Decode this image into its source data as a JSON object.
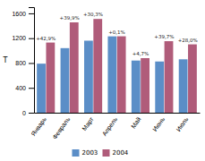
{
  "chart_data": {
    "type": "bar",
    "categories": [
      "Январь",
      "Февраль",
      "Март",
      "Апрель",
      "Май",
      "Июнь",
      "Июль"
    ],
    "series": [
      {
        "name": "2003",
        "color": "#5b8ec7",
        "values": [
          790,
          1040,
          1160,
          1230,
          840,
          825,
          860
        ]
      },
      {
        "name": "2004",
        "color": "#b05c7a",
        "values": [
          1130,
          1455,
          1510,
          1231,
          879,
          1152,
          1101
        ]
      }
    ],
    "annotations": [
      "+42,9%",
      "+39,9%",
      "+30,3%",
      "+0,1%",
      "+4,7%",
      "+39,7%",
      "+28,0%"
    ],
    "ylabel": "Т",
    "ylim": [
      0,
      1700
    ],
    "yticks": [
      0,
      400,
      800,
      1200,
      1600
    ],
    "grid": false,
    "legend": "bottom"
  }
}
